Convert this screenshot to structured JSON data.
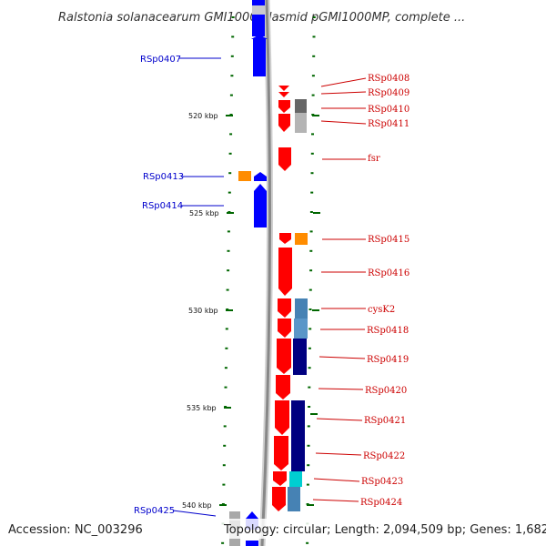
{
  "title": "Ralstonia solanacearum GMI1000 plasmid pGMI1000MP, complete ...",
  "footer": {
    "accession": "Accession: NC_003296",
    "summary": "Topology: circular; Length: 2,094,509 bp; Genes: 1,682"
  },
  "kbp_labels": [
    "520 kbp",
    "525 kbp",
    "530 kbp",
    "535 kbp",
    "540 kbp"
  ],
  "left_genes": [
    "RSp0407",
    "RSp0413",
    "RSp0414",
    "RSp0425"
  ],
  "right_genes": [
    "RSp0408",
    "RSp0409",
    "RSp0410",
    "RSp0411",
    "fsr",
    "RSp0415",
    "RSp0416",
    "cysK2",
    "RSp0418",
    "RSp0419",
    "RSp0420",
    "RSp0421",
    "RSp0422",
    "RSp0423",
    "RSp0424"
  ],
  "colors": {
    "forward": "#ff0000",
    "reverse": "#0000ff",
    "left_label": "#0000cc",
    "right_label": "#cc0000",
    "backbone": "#888888",
    "tick": "#006600"
  }
}
